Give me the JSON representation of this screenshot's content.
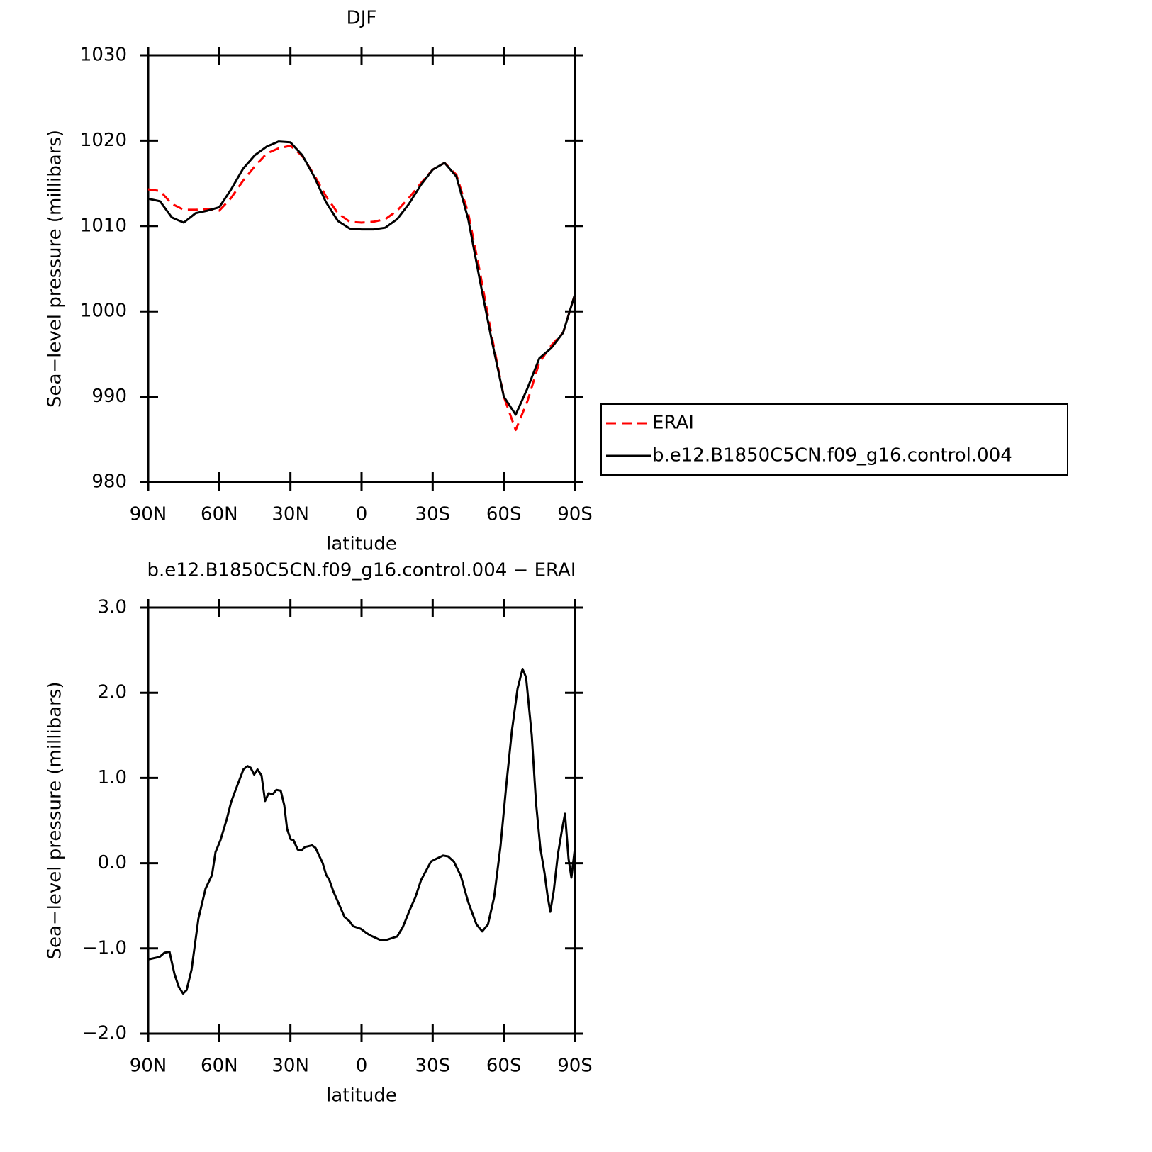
{
  "chart_data": [
    {
      "type": "line",
      "title": "DJF",
      "ylabel": "Sea−level pressure (millibars)",
      "xlabel": "latitude",
      "x": [
        90,
        85,
        80,
        75,
        70,
        65,
        60,
        55,
        50,
        45,
        40,
        35,
        30,
        25,
        20,
        15,
        10,
        5,
        0,
        -5,
        -10,
        -15,
        -20,
        -25,
        -30,
        -35,
        -40,
        -45,
        -50,
        -55,
        -60,
        -65,
        -70,
        -75,
        -80,
        -85,
        -90
      ],
      "series": [
        {
          "name": "ERAI",
          "color": "#ff0000",
          "linestyle": "dashed",
          "values": [
            1014.3,
            1014.1,
            1012.6,
            1011.9,
            1011.9,
            1012.0,
            1011.8,
            1013.3,
            1015.3,
            1017.0,
            1018.5,
            1019.1,
            1019.4,
            1018.2,
            1016.0,
            1013.5,
            1011.5,
            1010.5,
            1010.4,
            1010.5,
            1010.8,
            1011.8,
            1013.3,
            1015.0,
            1016.6,
            1017.4,
            1016.0,
            1011.5,
            1004.5,
            997,
            990,
            986.1,
            989.5,
            994,
            996.0,
            997.5,
            1002
          ]
        },
        {
          "name": "b.e12.B1850C5CN.f09_g16.control.004",
          "color": "#000000",
          "linestyle": "solid",
          "values": [
            1013.2,
            1012.9,
            1011.0,
            1010.4,
            1011.5,
            1011.8,
            1012.2,
            1014.3,
            1016.7,
            1018.3,
            1019.3,
            1019.9,
            1019.8,
            1018.3,
            1015.8,
            1012.8,
            1010.6,
            1009.7,
            1009.6,
            1009.6,
            1009.8,
            1010.8,
            1012.6,
            1014.8,
            1016.6,
            1017.4,
            1015.8,
            1010.8,
            1003.5,
            996.5,
            990,
            987.9,
            991,
            994.5,
            995.7,
            997.5,
            1002
          ]
        }
      ],
      "xlim": [
        90,
        -90
      ],
      "xticks": [
        {
          "value": 90,
          "label": "90N"
        },
        {
          "value": 60,
          "label": "60N"
        },
        {
          "value": 30,
          "label": "30N"
        },
        0,
        {
          "value": -30,
          "label": "30S"
        },
        {
          "value": -60,
          "label": "60S"
        },
        {
          "value": -90,
          "label": "90S"
        }
      ],
      "ylim": [
        980,
        1030
      ],
      "yticks": [
        980,
        990,
        1000,
        1010,
        1020,
        1030
      ],
      "legend": "outside-right"
    },
    {
      "type": "line",
      "title": "b.e12.B1850C5CN.f09_g16.control.004 − ERAI",
      "ylabel": "Sea−level pressure (millibars)",
      "xlabel": "latitude",
      "x": [
        90,
        85.2,
        83.1,
        81.0,
        78.9,
        77.1,
        75.3,
        73.8,
        71.7,
        68.8,
        65.8,
        63.1,
        61.6,
        59.5,
        56.8,
        55.0,
        52.3,
        49.8,
        48.1,
        46.8,
        45.3,
        43.9,
        42.2,
        40.7,
        39.2,
        37.4,
        35.9,
        34.1,
        32.6,
        31.4,
        29.9,
        28.7,
        26.9,
        25.4,
        23.9,
        20.9,
        19.4,
        16.4,
        14.9,
        13.7,
        11.9,
        8.9,
        7.2,
        5.1,
        3.6,
        0.3,
        -2.1,
        -3.9,
        -7.8,
        -10.5,
        -15.0,
        -17.4,
        -20.3,
        -22.7,
        -25.1,
        -29.3,
        -31.4,
        -34.4,
        -36.5,
        -38.9,
        -41.9,
        -44.9,
        -48.5,
        -50.9,
        -53.3,
        -55.9,
        -58.6,
        -61.0,
        -63.4,
        -65.8,
        -67.9,
        -69.4,
        -71.8,
        -73.6,
        -75.4,
        -77.2,
        -78.4,
        -79.6,
        -81.1,
        -82.8,
        -84.6,
        -85.8,
        -87.3,
        -88.5,
        -90
      ],
      "values": [
        -1.13,
        -1.1,
        -1.05,
        -1.04,
        -1.3,
        -1.45,
        -1.53,
        -1.49,
        -1.25,
        -0.65,
        -0.3,
        -0.14,
        0.13,
        0.27,
        0.52,
        0.72,
        0.92,
        1.1,
        1.14,
        1.12,
        1.04,
        1.1,
        1.03,
        0.73,
        0.82,
        0.81,
        0.86,
        0.85,
        0.68,
        0.4,
        0.28,
        0.27,
        0.16,
        0.15,
        0.19,
        0.21,
        0.18,
        0.0,
        -0.14,
        -0.19,
        -0.33,
        -0.52,
        -0.63,
        -0.68,
        -0.74,
        -0.77,
        -0.82,
        -0.85,
        -0.9,
        -0.9,
        -0.86,
        -0.75,
        -0.55,
        -0.4,
        -0.2,
        0.02,
        0.05,
        0.09,
        0.08,
        0.02,
        -0.15,
        -0.45,
        -0.72,
        -0.8,
        -0.72,
        -0.4,
        0.2,
        0.9,
        1.55,
        2.05,
        2.28,
        2.18,
        1.5,
        0.7,
        0.18,
        -0.12,
        -0.37,
        -0.57,
        -0.32,
        0.1,
        0.4,
        0.58,
        0.05,
        -0.17,
        0.18
      ],
      "color": "#000000",
      "xlim": [
        90,
        -90
      ],
      "xticks": [
        {
          "value": 90,
          "label": "90N"
        },
        {
          "value": 60,
          "label": "60N"
        },
        {
          "value": 30,
          "label": "30N"
        },
        0,
        {
          "value": -30,
          "label": "30S"
        },
        {
          "value": -60,
          "label": "60S"
        },
        {
          "value": -90,
          "label": "90S"
        }
      ],
      "ylim": [
        -2,
        3
      ],
      "yticks": [
        {
          "value": -2,
          "label": "−2.0"
        },
        {
          "value": -1,
          "label": "−1.0"
        },
        {
          "value": 0,
          "label": "0.0"
        },
        {
          "value": 1,
          "label": "1.0"
        },
        {
          "value": 2,
          "label": "2.0"
        },
        {
          "value": 3,
          "label": "3.0"
        }
      ]
    }
  ]
}
